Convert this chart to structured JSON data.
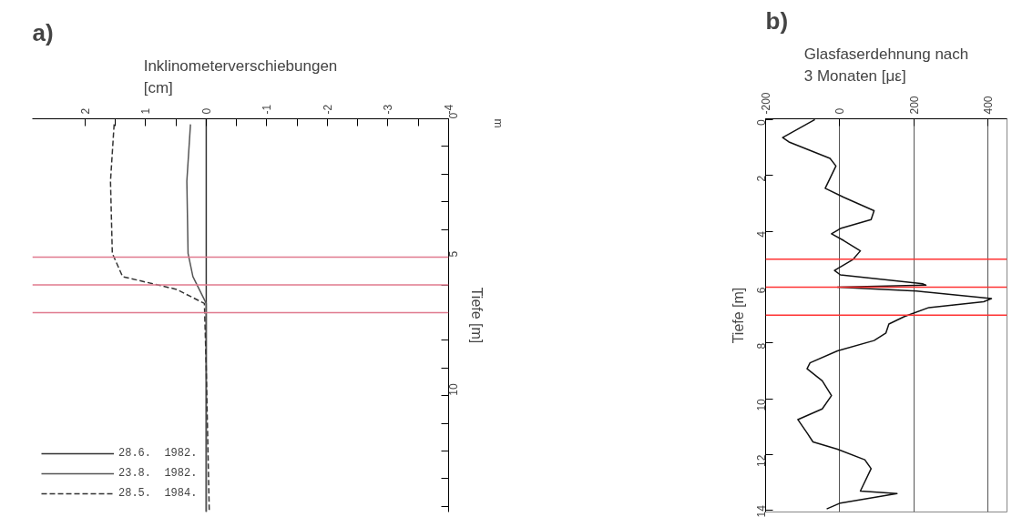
{
  "chart_data": [
    {
      "type": "line",
      "orientation": "horizontal",
      "title": "Inklinometerverschiebungen\n[cm]",
      "ylabel": "Tiefe [m]",
      "xlim": [
        2.87,
        -4
      ],
      "xticks": [
        2,
        {
          "value": 1.5,
          "label": null
        },
        1,
        {
          "value": 0.5,
          "label": null
        },
        0,
        {
          "value": -0.5,
          "label": null
        },
        -1,
        {
          "value": -1.5,
          "label": null
        },
        -2,
        {
          "value": -2.5,
          "label": null
        },
        -3,
        {
          "value": -3.5,
          "label": null
        },
        -4
      ],
      "ylim": [
        14.2,
        0
      ],
      "yticks": [
        0,
        {
          "value": 1,
          "label": null
        },
        {
          "value": 2,
          "label": null
        },
        {
          "value": 3,
          "label": null
        },
        {
          "value": 4,
          "label": null
        },
        5,
        {
          "value": 6,
          "label": null
        },
        {
          "value": 7,
          "label": null
        },
        {
          "value": 8,
          "label": null
        },
        {
          "value": 9,
          "label": null
        },
        10,
        {
          "value": 11,
          "label": null
        },
        {
          "value": 12,
          "label": null
        },
        {
          "value": 13,
          "label": null
        },
        {
          "value": 14,
          "label": null
        }
      ],
      "series": [
        {
          "name": "28.6.  1982.",
          "color": "#333333",
          "line_style": "solid",
          "x": [
            0,
            14.2
          ],
          "values": [
            0,
            0
          ]
        },
        {
          "name": "23.8.  1982.",
          "color": "#555555",
          "line_style": "solid",
          "x": [
            0.2,
            2.25,
            4.86,
            5.7,
            6.67,
            14.2
          ],
          "values": [
            0.26,
            0.32,
            0.3,
            0.22,
            0.0,
            0.0
          ]
        },
        {
          "name": "28.5.  1984.",
          "color": "#333333",
          "line_style": "dashed",
          "x": [
            0.2,
            2.25,
            4.86,
            5.7,
            6.16,
            6.67,
            9.0,
            14.2
          ],
          "values": [
            1.52,
            1.58,
            1.55,
            1.38,
            0.49,
            0.03,
            0.0,
            -0.05
          ]
        }
      ],
      "ref_lines": [
        {
          "axis": "y",
          "value": 5,
          "color": "#e07a8e"
        },
        {
          "axis": "y",
          "value": 6,
          "color": "#e07a8e"
        },
        {
          "axis": "y",
          "value": 7,
          "color": "#e07a8e"
        }
      ],
      "legend": "bottom left",
      "grid": false,
      "annotations": [
        "a)",
        "m"
      ]
    },
    {
      "type": "line",
      "orientation": "horizontal",
      "title": "Glasfaserdehnung nach\n3 Monaten [με]",
      "ylabel": "Tiefe [m]",
      "xlim": [
        -200,
        452
      ],
      "xticks": [
        -200,
        0,
        200,
        400
      ],
      "ylim": [
        14.05,
        -0.03
      ],
      "yticks": [
        0,
        2,
        4,
        6,
        8,
        10,
        12,
        14
      ],
      "series": [
        {
          "color": "#111111",
          "line_style": "solid",
          "x": [
            0,
            0.64,
            0.8,
            1.39,
            1.66,
            2.46,
            2.78,
            3.26,
            3.58,
            3.9,
            4.09,
            4.33,
            4.7,
            5.02,
            5.4,
            5.56,
            5.88,
            5.93,
            6.0,
            6.14,
            6.41,
            6.52,
            6.73,
            7.05,
            7.32,
            7.64,
            7.91,
            8.28,
            8.71,
            8.92,
            9.35,
            9.88,
            10.36,
            10.74,
            11.22,
            11.54,
            11.8,
            12.18,
            12.5,
            13.3,
            13.39,
            13.73,
            13.94
          ],
          "values": [
            -67,
            -154,
            -137,
            -26,
            -10,
            -39,
            11,
            93,
            85,
            2,
            -22,
            11,
            56,
            35,
            -14,
            2,
            225,
            233,
            -6,
            208,
            410,
            389,
            241,
            175,
            133,
            125,
            93,
            -6,
            -80,
            -88,
            -47,
            -22,
            -47,
            -113,
            -88,
            -72,
            -6,
            68,
            85,
            56,
            155,
            2,
            -35
          ]
        }
      ],
      "ref_lines": [
        {
          "axis": "y",
          "value": 5,
          "color": "#ff3333"
        },
        {
          "axis": "y",
          "value": 6,
          "color": "#ff3333"
        },
        {
          "axis": "y",
          "value": 7,
          "color": "#ff3333"
        }
      ],
      "grid": "x",
      "annotations": [
        "b)"
      ]
    }
  ]
}
